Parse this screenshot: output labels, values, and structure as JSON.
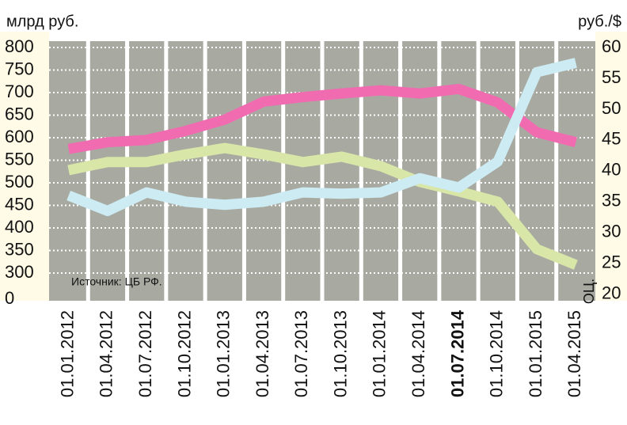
{
  "chart_data": {
    "type": "line",
    "y_label": "млрд руб.",
    "y2_label": "руб./$",
    "annotations": [
      "Источник: ЦБ РФ.",
      "ОЦ."
    ],
    "categories": [
      "01.01.2012",
      "01.04.2012",
      "01.07.2012",
      "01.10.2012",
      "01.01.2013",
      "01.04.2013",
      "01.07.2013",
      "01.10.2013",
      "01.01.2014",
      "01.04.2014",
      "01.07.2014",
      "01.10.2014",
      "01.01.2015",
      "01.04.2015"
    ],
    "highlight_index": 10,
    "series": [
      {
        "color": "#f06bb0",
        "values": [
          575,
          590,
          595,
          615,
          640,
          680,
          690,
          698,
          705,
          698,
          708,
          678,
          612,
          590
        ]
      },
      {
        "color": "#d8e6a8",
        "values": [
          528,
          546,
          546,
          563,
          577,
          563,
          546,
          558,
          537,
          502,
          481,
          458,
          353,
          318
        ]
      },
      {
        "color": "#cdebf3",
        "axis": "y2",
        "values": [
          36,
          33.5,
          36.5,
          35,
          34.5,
          35,
          36.5,
          36.3,
          36.5,
          38.8,
          37.3,
          41.5,
          56,
          57.5
        ]
      }
    ],
    "ylim": [
      242,
      800
    ],
    "y_axis_break": true,
    "yticks": [
      0,
      300,
      350,
      400,
      450,
      500,
      550,
      600,
      650,
      700,
      750,
      800
    ],
    "y2lim": [
      19.2,
      60
    ],
    "y2ticks": [
      20,
      25,
      30,
      35,
      40,
      45,
      50,
      55,
      60
    ],
    "grid": true
  }
}
